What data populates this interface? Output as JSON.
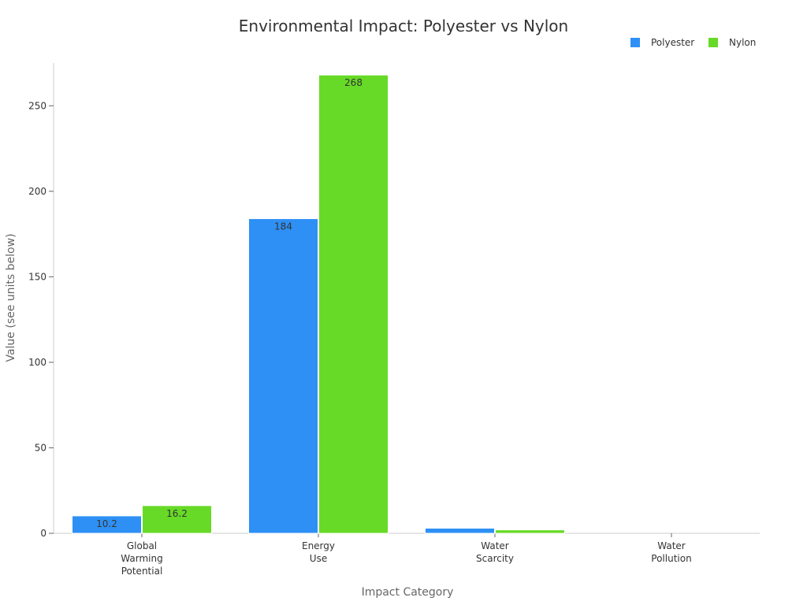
{
  "chart_data": {
    "type": "bar",
    "title": "Environmental Impact: Polyester vs Nylon",
    "xlabel": "Impact Category",
    "ylabel": "Value (see units below)",
    "ylim": [
      0,
      275
    ],
    "yticks": [
      0,
      50,
      100,
      150,
      200,
      250
    ],
    "grid": false,
    "legend_position": "top-right",
    "categories": [
      [
        "Global",
        "Warming",
        "Potential"
      ],
      [
        "Energy",
        "Use"
      ],
      [
        "Water",
        "Scarcity"
      ],
      [
        "Water",
        "Pollution"
      ]
    ],
    "series": [
      {
        "name": "Polyester",
        "color": "#2e90f5",
        "values": [
          10.2,
          184,
          3,
          0
        ],
        "labels": [
          "10.2",
          "184",
          "",
          ""
        ]
      },
      {
        "name": "Nylon",
        "color": "#66da26",
        "values": [
          16.2,
          268,
          2,
          0
        ],
        "labels": [
          "16.2",
          "268",
          "",
          ""
        ]
      }
    ]
  }
}
